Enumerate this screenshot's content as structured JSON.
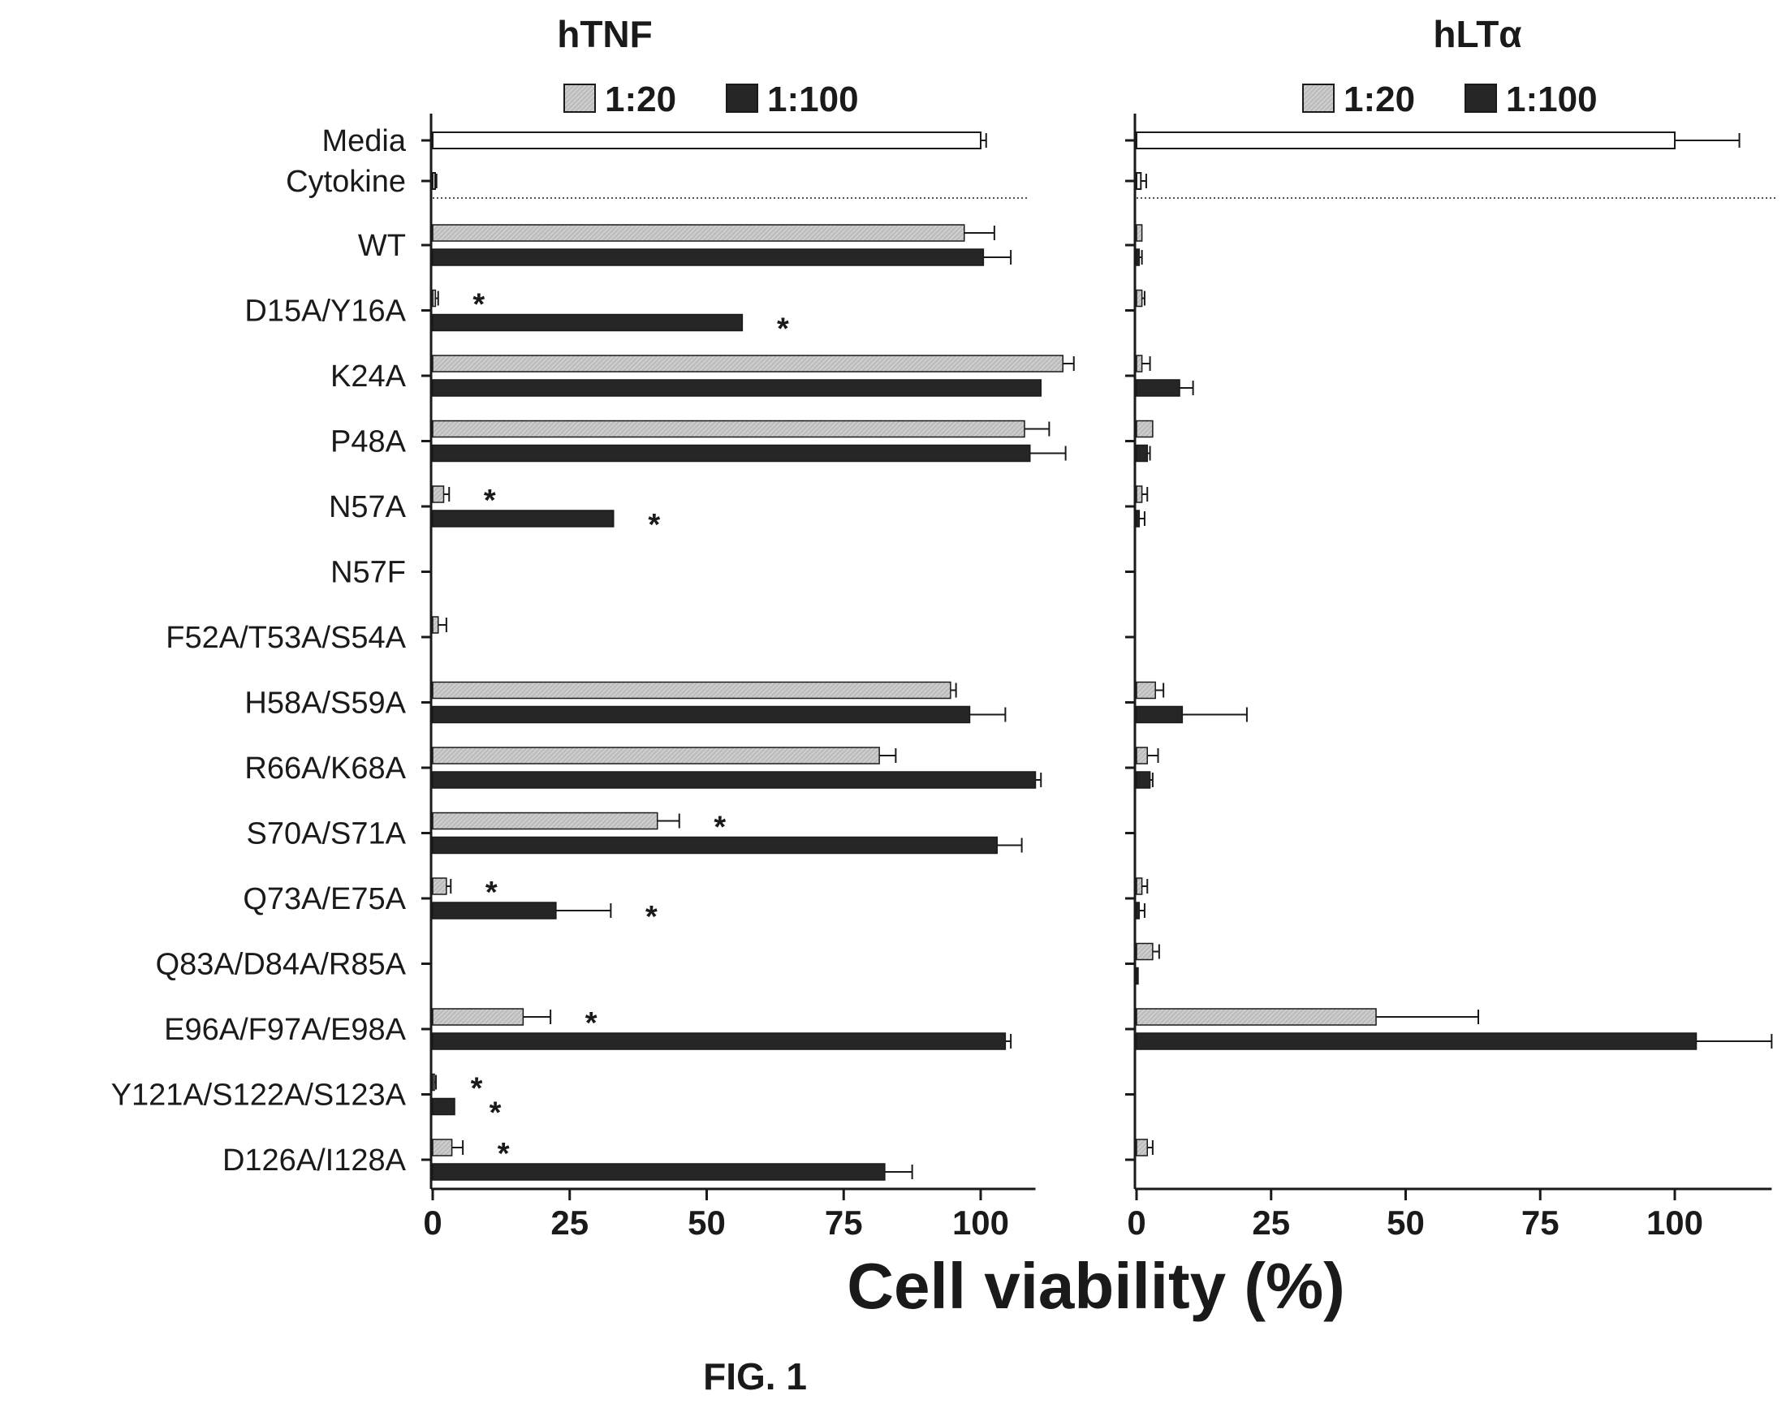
{
  "figure_caption": "FIG. 1",
  "x_axis_label": "Cell viability (%)",
  "colors": {
    "light": "#c4c4c4",
    "dark": "#262626",
    "media": "#ffffff",
    "stroke": "#1a1a1a"
  },
  "chart_data": [
    {
      "type": "bar",
      "orientation": "horizontal",
      "title": "hTNF",
      "legend_placement": "top",
      "xlabel": "Cell viability (%)",
      "xlim": [
        0,
        110
      ],
      "xticks": [
        "0",
        "25",
        "50",
        "75",
        "100"
      ],
      "categories": [
        "Media",
        "Cytokine",
        "WT",
        "D15A/Y16A",
        "K24A",
        "P48A",
        "N57A",
        "N57F",
        "F52A/T53A/S54A",
        "H58A/S59A",
        "R66A/K68A",
        "S70A/S71A",
        "Q73A/E75A",
        "Q83A/D84A/R85A",
        "E96A/F97A/E98A",
        "Y121A/S122A/S123A",
        "D126A/I128A"
      ],
      "controls": [
        {
          "category": "Media",
          "value": 100,
          "error": 1
        },
        {
          "category": "Cytokine",
          "value": 0.4,
          "error": 0.3
        }
      ],
      "series": [
        {
          "name": "1:20",
          "values": [
            null,
            null,
            97,
            0.5,
            115,
            108,
            2,
            0,
            1,
            94.5,
            81.5,
            41,
            2.5,
            0,
            16.5,
            0.3,
            3.5
          ],
          "errors": [
            null,
            null,
            5.5,
            0.5,
            2,
            4.5,
            1,
            0,
            1.5,
            1,
            3,
            4,
            0.8,
            0,
            5,
            0.3,
            2
          ]
        },
        {
          "name": "1:100",
          "values": [
            null,
            null,
            100.5,
            56.5,
            111,
            109,
            33,
            0,
            0,
            98,
            110,
            103,
            22.5,
            0,
            104.5,
            4,
            82.5
          ],
          "errors": [
            null,
            null,
            5,
            0,
            0,
            6.5,
            0,
            0,
            0,
            6.5,
            1,
            4.5,
            10,
            0,
            1,
            0,
            5
          ]
        }
      ],
      "significance": [
        {
          "category": "D15A/Y16A",
          "series": "1:20",
          "mark": "*"
        },
        {
          "category": "D15A/Y16A",
          "series": "1:100",
          "mark": "*"
        },
        {
          "category": "N57A",
          "series": "1:20",
          "mark": "*"
        },
        {
          "category": "N57A",
          "series": "1:100",
          "mark": "*"
        },
        {
          "category": "S70A/S71A",
          "series": "1:20",
          "mark": "*"
        },
        {
          "category": "Q73A/E75A",
          "series": "1:20",
          "mark": "*"
        },
        {
          "category": "Q73A/E75A",
          "series": "1:100",
          "mark": "*"
        },
        {
          "category": "E96A/F97A/E98A",
          "series": "1:20",
          "mark": "*"
        },
        {
          "category": "Y121A/S122A/S123A",
          "series": "1:20",
          "mark": "*"
        },
        {
          "category": "Y121A/S122A/S123A",
          "series": "1:100",
          "mark": "*"
        },
        {
          "category": "D126A/I128A",
          "series": "1:20",
          "mark": "*"
        }
      ]
    },
    {
      "type": "bar",
      "orientation": "horizontal",
      "title": "hLTα",
      "legend_placement": "top",
      "xlabel": "Cell viability (%)",
      "xlim": [
        0,
        118
      ],
      "xticks": [
        "0",
        "25",
        "50",
        "75",
        "100"
      ],
      "categories": [
        "Media",
        "Cytokine",
        "WT",
        "D15A/Y16A",
        "K24A",
        "P48A",
        "N57A",
        "N57F",
        "F52A/T53A/S54A",
        "H58A/S59A",
        "R66A/K68A",
        "S70A/S71A",
        "Q73A/E75A",
        "Q83A/D84A/R85A",
        "E96A/F97A/E98A",
        "Y121A/S122A/S123A",
        "D126A/I128A"
      ],
      "controls": [
        {
          "category": "Media",
          "value": 100,
          "error": 12
        },
        {
          "category": "Cytokine",
          "value": 0.8,
          "error": 1
        }
      ],
      "series": [
        {
          "name": "1:20",
          "values": [
            null,
            null,
            1,
            1,
            1,
            3,
            1,
            0,
            0,
            3.5,
            2,
            0,
            1,
            3,
            44.5,
            0,
            2
          ],
          "errors": [
            null,
            null,
            0,
            0.5,
            1.5,
            0,
            1,
            0,
            0,
            1.5,
            2,
            0,
            1,
            1.2,
            19,
            0,
            1
          ]
        },
        {
          "name": "1:100",
          "values": [
            null,
            null,
            0.5,
            0,
            8,
            2,
            0.5,
            0,
            0,
            8.5,
            2.5,
            0,
            0.5,
            0.3,
            104,
            0,
            0
          ],
          "errors": [
            null,
            null,
            0.5,
            0,
            2.5,
            0.5,
            1,
            0,
            0,
            12,
            0.5,
            0,
            1,
            0,
            14,
            0,
            0
          ]
        }
      ],
      "significance": []
    }
  ]
}
